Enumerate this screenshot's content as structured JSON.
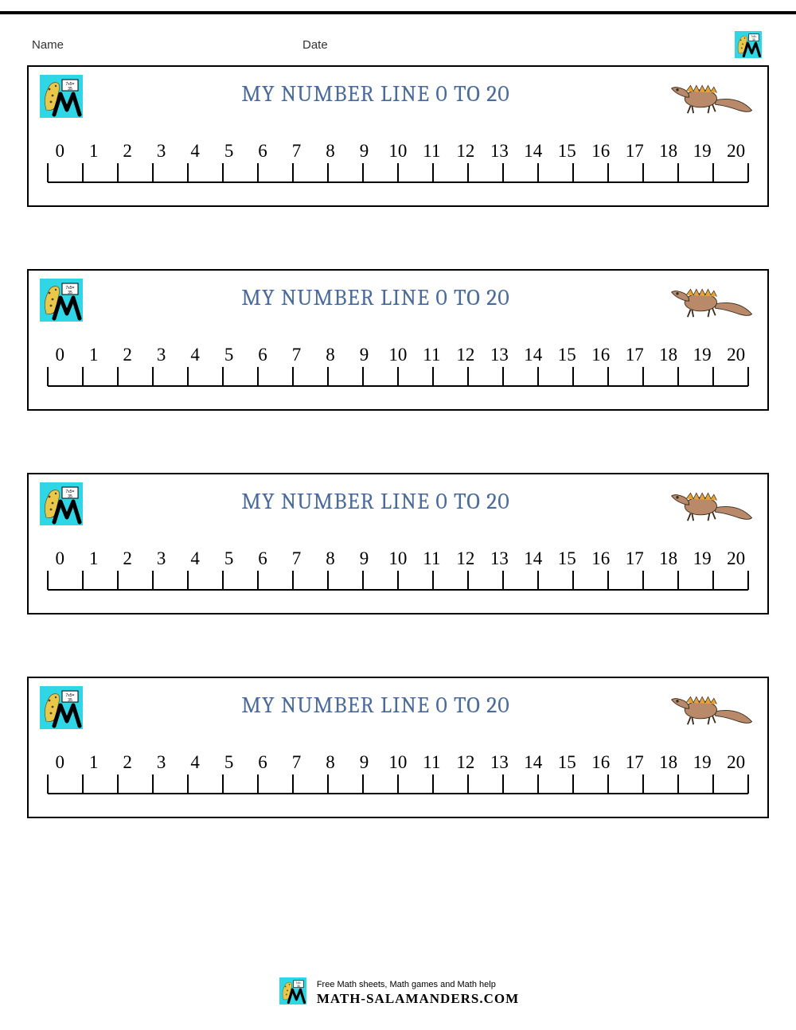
{
  "header": {
    "name_label": "Name",
    "date_label": "Date"
  },
  "card": {
    "title": "MY NUMBER LINE 0 TO 20",
    "title_color": "#4a6a9a",
    "title_fontsize": 28,
    "border_color": "#000000",
    "count": 4
  },
  "numberline": {
    "values": [
      "0",
      "1",
      "2",
      "3",
      "4",
      "5",
      "6",
      "7",
      "8",
      "9",
      "10",
      "11",
      "12",
      "13",
      "14",
      "15",
      "16",
      "17",
      "18",
      "19",
      "20"
    ],
    "min": 0,
    "max": 20,
    "tick_height": 24,
    "line_color": "#000000",
    "number_color": "#000000",
    "number_fontsize": 23,
    "font_family": "Comic Sans MS"
  },
  "logo": {
    "bg_color": "#2fd6e6",
    "body_color": "#e8c84a",
    "spot_color": "#5a3a10",
    "m_color": "#000000",
    "board_color": "#ffffff",
    "board_text": "7x5=35"
  },
  "salamander": {
    "body_color": "#b88a6a",
    "crest_color": "#e6a23a",
    "outline_color": "#3a2a1a"
  },
  "footer": {
    "tagline": "Free Math sheets, Math games and Math help",
    "brand": "MATH-SALAMANDERS.COM"
  }
}
